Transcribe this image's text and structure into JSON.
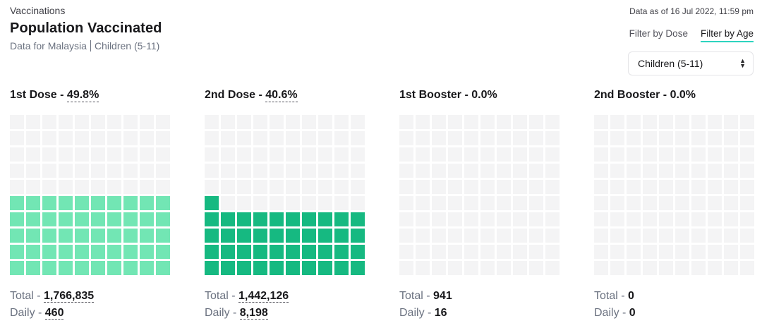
{
  "header": {
    "eyebrow": "Vaccinations",
    "title": "Population Vaccinated",
    "subtitle_region": "Data for Malaysia",
    "subtitle_group": "Children (5-11)",
    "as_of": "Data as of 16 Jul 2022, 11:59 pm"
  },
  "filters": {
    "tab_dose": "Filter by Dose",
    "tab_age": "Filter by Age",
    "active_tab": "age",
    "select_value": "Children (5-11)"
  },
  "colors": {
    "accent": "#2dd4bf",
    "empty_cell": "#f4f4f5",
    "first_dose": "#72e6b4",
    "second_dose": "#16b981"
  },
  "panels": [
    {
      "title": "1st Dose - ",
      "pct": "49.8%",
      "filled_fraction": 0.498,
      "color": "#72e6b4",
      "total_label": "Total - ",
      "total": "1,766,835",
      "daily_label": "Daily - ",
      "daily": "460",
      "dashed": true
    },
    {
      "title": "2nd Dose - ",
      "pct": "40.6%",
      "filled_fraction": 0.406,
      "color": "#16b981",
      "total_label": "Total - ",
      "total": "1,442,126",
      "daily_label": "Daily - ",
      "daily": "8,198",
      "dashed": true
    },
    {
      "title": "1st Booster - ",
      "pct": "0.0%",
      "filled_fraction": 0.0,
      "color": "#16b981",
      "total_label": "Total - ",
      "total": "941",
      "daily_label": "Daily - ",
      "daily": "16",
      "dashed": false
    },
    {
      "title": "2nd Booster - ",
      "pct": "0.0%",
      "filled_fraction": 0.0,
      "color": "#16b981",
      "total_label": "Total - ",
      "total": "0",
      "daily_label": "Daily - ",
      "daily": "0",
      "dashed": false
    }
  ]
}
